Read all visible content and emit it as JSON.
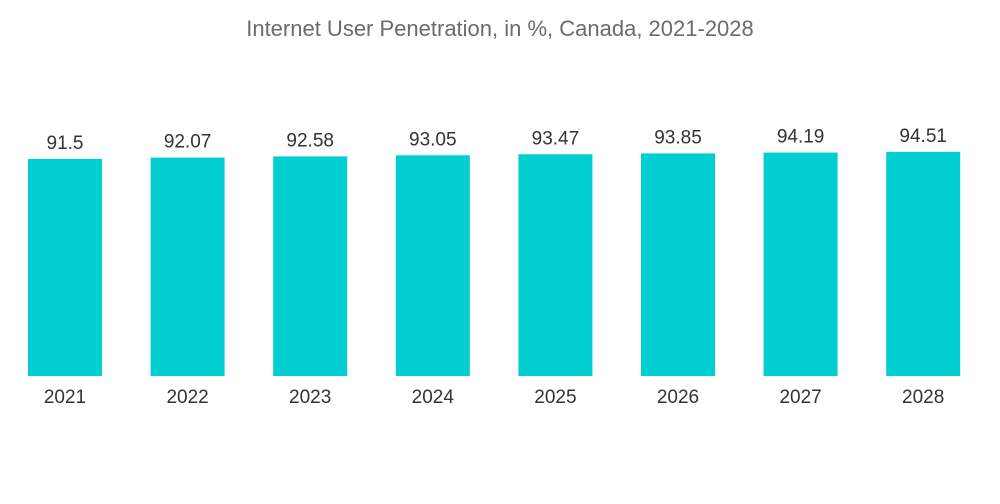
{
  "chart_data": {
    "type": "bar",
    "title": "Internet User Penetration, in %, Canada, 2021-2028",
    "categories": [
      "2021",
      "2022",
      "2023",
      "2024",
      "2025",
      "2026",
      "2027",
      "2028"
    ],
    "values": [
      91.5,
      92.07,
      92.58,
      93.05,
      93.47,
      93.85,
      94.19,
      94.51
    ],
    "value_labels": [
      "91.5",
      "92.07",
      "92.58",
      "93.05",
      "93.47",
      "93.85",
      "94.19",
      "94.51"
    ],
    "xlabel": "",
    "ylabel": "",
    "ylim": [
      0,
      100
    ],
    "grid": false,
    "color": "#00CED1"
  }
}
